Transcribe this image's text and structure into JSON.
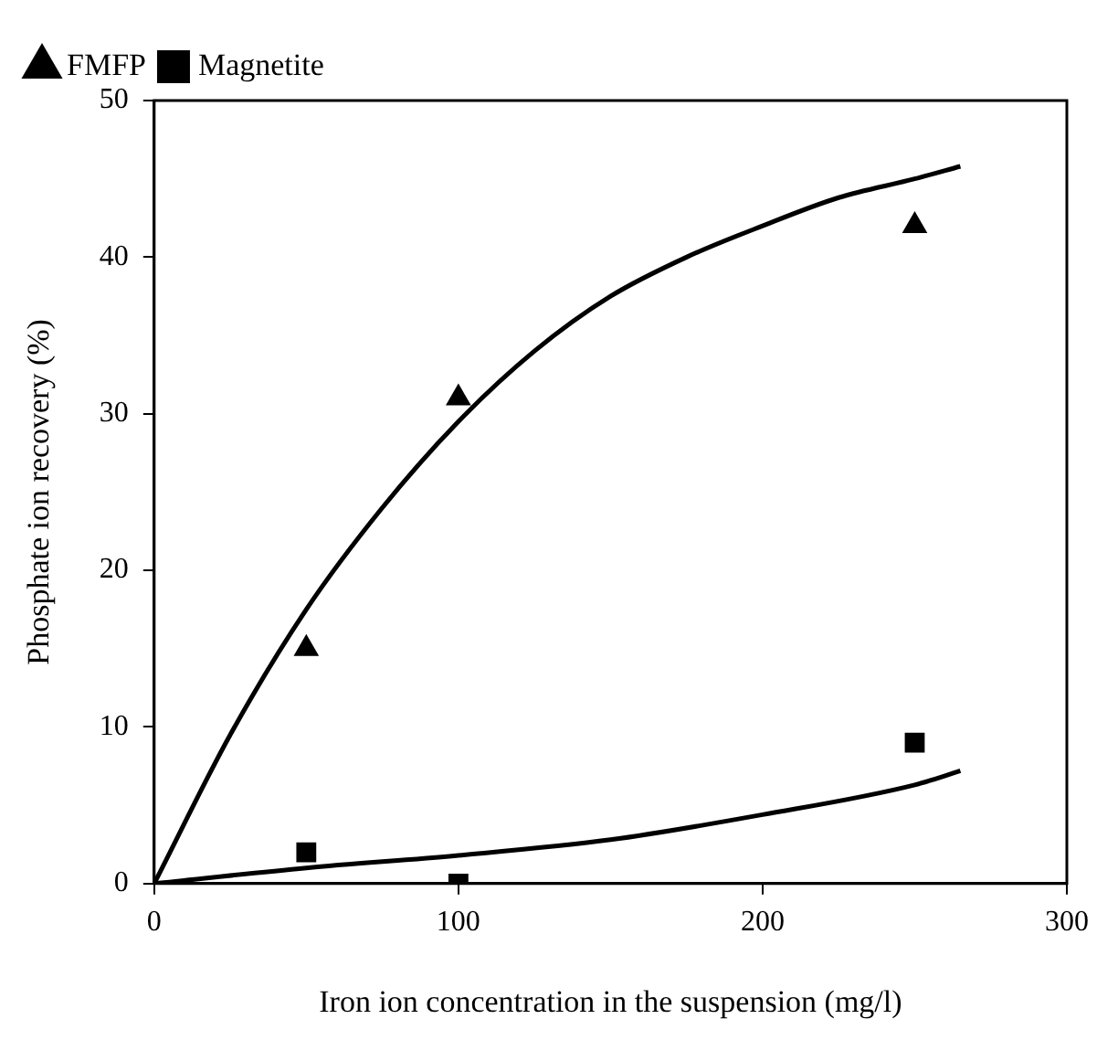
{
  "chart_data": {
    "type": "scatter",
    "xlabel": "Iron ion concentration in the suspension (mg/l)",
    "ylabel": "Phosphate ion recovery (%)",
    "xlim": [
      0,
      300
    ],
    "xticks": [
      0,
      100,
      200,
      300
    ],
    "ylim": [
      0,
      50
    ],
    "yticks": [
      0,
      10,
      20,
      30,
      40,
      50
    ],
    "grid": false,
    "legend": "top left",
    "series": [
      {
        "name": "FMFP",
        "color": "#000000",
        "marker": "triangle",
        "x": [
          50,
          100,
          250
        ],
        "values": [
          15,
          31,
          42
        ]
      },
      {
        "name": "Magnetite",
        "color": "#000000",
        "marker": "square",
        "x": [
          50,
          100,
          250
        ],
        "values": [
          2,
          0,
          9
        ]
      },
      {
        "type": "line",
        "color": "#000000",
        "marker": "none",
        "x": [
          0,
          25,
          50,
          75,
          100,
          125,
          150,
          175,
          200,
          225,
          250,
          265
        ],
        "values": [
          0,
          9.5,
          17.5,
          24,
          29.5,
          34,
          37.5,
          40,
          42,
          43.8,
          45,
          45.8
        ]
      },
      {
        "type": "line",
        "color": "#000000",
        "marker": "none",
        "x": [
          0,
          50,
          100,
          150,
          200,
          250,
          265
        ],
        "values": [
          0,
          1,
          1.8,
          2.8,
          4.4,
          6.3,
          7.2
        ]
      }
    ]
  }
}
